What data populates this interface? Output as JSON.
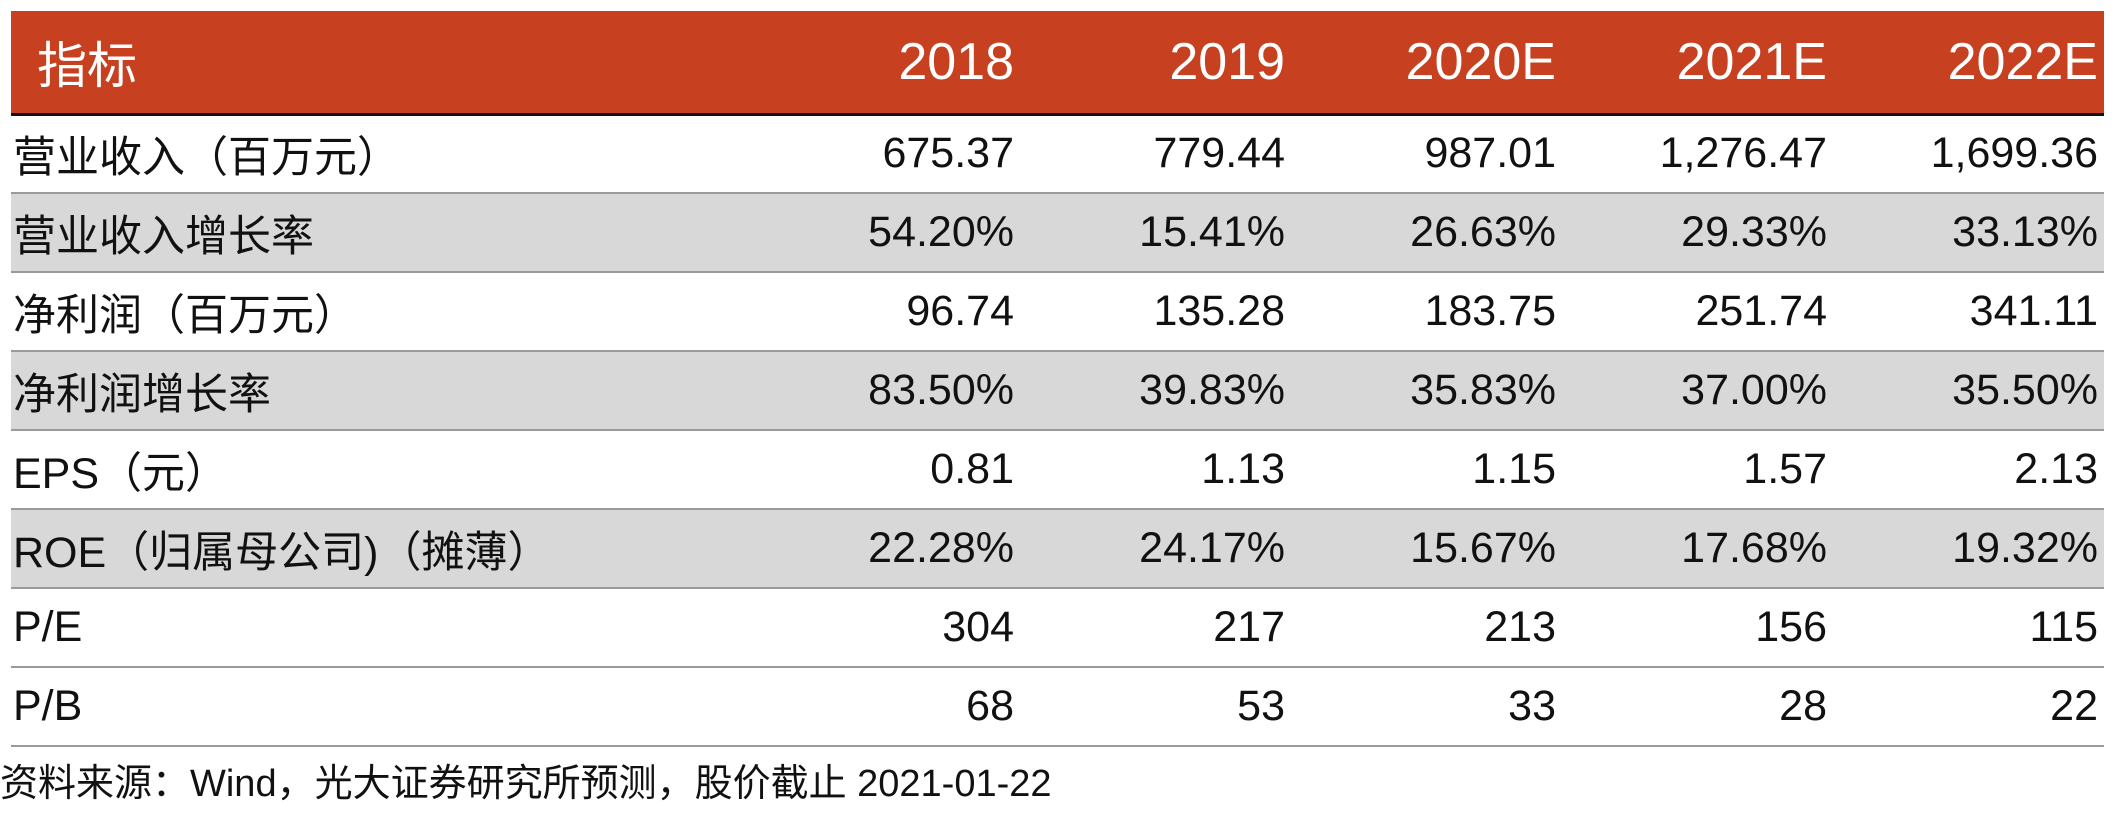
{
  "table": {
    "header": {
      "label": "指标",
      "years": [
        "2018",
        "2019",
        "2020E",
        "2021E",
        "2022E"
      ]
    },
    "rows": [
      {
        "label": "营业收入（百万元）",
        "values": [
          "675.37",
          "779.44",
          "987.01",
          "1,276.47",
          "1,699.36"
        ],
        "shaded": false
      },
      {
        "label": "营业收入增长率",
        "values": [
          "54.20%",
          "15.41%",
          "26.63%",
          "29.33%",
          "33.13%"
        ],
        "shaded": true
      },
      {
        "label": "净利润（百万元）",
        "values": [
          "96.74",
          "135.28",
          "183.75",
          "251.74",
          "341.11"
        ],
        "shaded": false
      },
      {
        "label": "净利润增长率",
        "values": [
          "83.50%",
          "39.83%",
          "35.83%",
          "37.00%",
          "35.50%"
        ],
        "shaded": true
      },
      {
        "label": "EPS（元）",
        "values": [
          "0.81",
          "1.13",
          "1.15",
          "1.57",
          "2.13"
        ],
        "shaded": false
      },
      {
        "label": "ROE（归属母公司)（摊薄）",
        "values": [
          "22.28%",
          "24.17%",
          "15.67%",
          "17.68%",
          "19.32%"
        ],
        "shaded": true
      },
      {
        "label": "P/E",
        "values": [
          "304",
          "217",
          "213",
          "156",
          "115"
        ],
        "shaded": false
      },
      {
        "label": "P/B",
        "values": [
          "68",
          "53",
          "33",
          "28",
          "22"
        ],
        "shaded": false
      }
    ]
  },
  "source_note": "资料来源：Wind，光大证券研究所预测，股价截止 2021-01-22",
  "colors": {
    "header_background": "#c7401f",
    "header_text": "#ffffff",
    "shaded_row": "#d8d8d8",
    "row_divider": "#9a9a9a"
  }
}
